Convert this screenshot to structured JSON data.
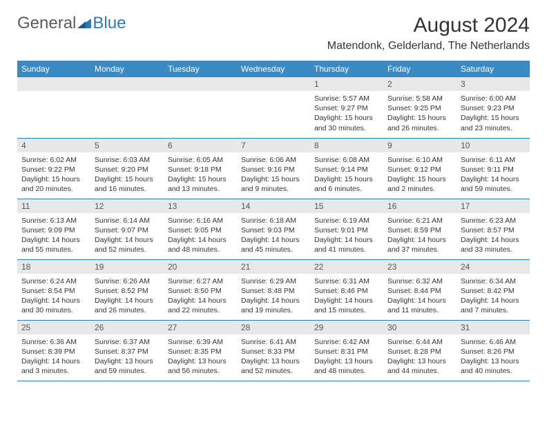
{
  "logo": {
    "general": "General",
    "blue": "Blue"
  },
  "title": "August 2024",
  "location": "Matendonk, Gelderland, The Netherlands",
  "colors": {
    "header_bg": "#3b8ac4",
    "header_text": "#ffffff",
    "border": "#2a7ab8",
    "daynum_bg": "#e8e8e8",
    "logo_gray": "#5a5a5a",
    "logo_blue": "#2a7ab8"
  },
  "dayHeaders": [
    "Sunday",
    "Monday",
    "Tuesday",
    "Wednesday",
    "Thursday",
    "Friday",
    "Saturday"
  ],
  "weeks": [
    [
      {
        "num": "",
        "sunrise": "",
        "sunset": "",
        "daylight": ""
      },
      {
        "num": "",
        "sunrise": "",
        "sunset": "",
        "daylight": ""
      },
      {
        "num": "",
        "sunrise": "",
        "sunset": "",
        "daylight": ""
      },
      {
        "num": "",
        "sunrise": "",
        "sunset": "",
        "daylight": ""
      },
      {
        "num": "1",
        "sunrise": "Sunrise: 5:57 AM",
        "sunset": "Sunset: 9:27 PM",
        "daylight": "Daylight: 15 hours and 30 minutes."
      },
      {
        "num": "2",
        "sunrise": "Sunrise: 5:58 AM",
        "sunset": "Sunset: 9:25 PM",
        "daylight": "Daylight: 15 hours and 26 minutes."
      },
      {
        "num": "3",
        "sunrise": "Sunrise: 6:00 AM",
        "sunset": "Sunset: 9:23 PM",
        "daylight": "Daylight: 15 hours and 23 minutes."
      }
    ],
    [
      {
        "num": "4",
        "sunrise": "Sunrise: 6:02 AM",
        "sunset": "Sunset: 9:22 PM",
        "daylight": "Daylight: 15 hours and 20 minutes."
      },
      {
        "num": "5",
        "sunrise": "Sunrise: 6:03 AM",
        "sunset": "Sunset: 9:20 PM",
        "daylight": "Daylight: 15 hours and 16 minutes."
      },
      {
        "num": "6",
        "sunrise": "Sunrise: 6:05 AM",
        "sunset": "Sunset: 9:18 PM",
        "daylight": "Daylight: 15 hours and 13 minutes."
      },
      {
        "num": "7",
        "sunrise": "Sunrise: 6:06 AM",
        "sunset": "Sunset: 9:16 PM",
        "daylight": "Daylight: 15 hours and 9 minutes."
      },
      {
        "num": "8",
        "sunrise": "Sunrise: 6:08 AM",
        "sunset": "Sunset: 9:14 PM",
        "daylight": "Daylight: 15 hours and 6 minutes."
      },
      {
        "num": "9",
        "sunrise": "Sunrise: 6:10 AM",
        "sunset": "Sunset: 9:12 PM",
        "daylight": "Daylight: 15 hours and 2 minutes."
      },
      {
        "num": "10",
        "sunrise": "Sunrise: 6:11 AM",
        "sunset": "Sunset: 9:11 PM",
        "daylight": "Daylight: 14 hours and 59 minutes."
      }
    ],
    [
      {
        "num": "11",
        "sunrise": "Sunrise: 6:13 AM",
        "sunset": "Sunset: 9:09 PM",
        "daylight": "Daylight: 14 hours and 55 minutes."
      },
      {
        "num": "12",
        "sunrise": "Sunrise: 6:14 AM",
        "sunset": "Sunset: 9:07 PM",
        "daylight": "Daylight: 14 hours and 52 minutes."
      },
      {
        "num": "13",
        "sunrise": "Sunrise: 6:16 AM",
        "sunset": "Sunset: 9:05 PM",
        "daylight": "Daylight: 14 hours and 48 minutes."
      },
      {
        "num": "14",
        "sunrise": "Sunrise: 6:18 AM",
        "sunset": "Sunset: 9:03 PM",
        "daylight": "Daylight: 14 hours and 45 minutes."
      },
      {
        "num": "15",
        "sunrise": "Sunrise: 6:19 AM",
        "sunset": "Sunset: 9:01 PM",
        "daylight": "Daylight: 14 hours and 41 minutes."
      },
      {
        "num": "16",
        "sunrise": "Sunrise: 6:21 AM",
        "sunset": "Sunset: 8:59 PM",
        "daylight": "Daylight: 14 hours and 37 minutes."
      },
      {
        "num": "17",
        "sunrise": "Sunrise: 6:23 AM",
        "sunset": "Sunset: 8:57 PM",
        "daylight": "Daylight: 14 hours and 33 minutes."
      }
    ],
    [
      {
        "num": "18",
        "sunrise": "Sunrise: 6:24 AM",
        "sunset": "Sunset: 8:54 PM",
        "daylight": "Daylight: 14 hours and 30 minutes."
      },
      {
        "num": "19",
        "sunrise": "Sunrise: 6:26 AM",
        "sunset": "Sunset: 8:52 PM",
        "daylight": "Daylight: 14 hours and 26 minutes."
      },
      {
        "num": "20",
        "sunrise": "Sunrise: 6:27 AM",
        "sunset": "Sunset: 8:50 PM",
        "daylight": "Daylight: 14 hours and 22 minutes."
      },
      {
        "num": "21",
        "sunrise": "Sunrise: 6:29 AM",
        "sunset": "Sunset: 8:48 PM",
        "daylight": "Daylight: 14 hours and 19 minutes."
      },
      {
        "num": "22",
        "sunrise": "Sunrise: 6:31 AM",
        "sunset": "Sunset: 8:46 PM",
        "daylight": "Daylight: 14 hours and 15 minutes."
      },
      {
        "num": "23",
        "sunrise": "Sunrise: 6:32 AM",
        "sunset": "Sunset: 8:44 PM",
        "daylight": "Daylight: 14 hours and 11 minutes."
      },
      {
        "num": "24",
        "sunrise": "Sunrise: 6:34 AM",
        "sunset": "Sunset: 8:42 PM",
        "daylight": "Daylight: 14 hours and 7 minutes."
      }
    ],
    [
      {
        "num": "25",
        "sunrise": "Sunrise: 6:36 AM",
        "sunset": "Sunset: 8:39 PM",
        "daylight": "Daylight: 14 hours and 3 minutes."
      },
      {
        "num": "26",
        "sunrise": "Sunrise: 6:37 AM",
        "sunset": "Sunset: 8:37 PM",
        "daylight": "Daylight: 13 hours and 59 minutes."
      },
      {
        "num": "27",
        "sunrise": "Sunrise: 6:39 AM",
        "sunset": "Sunset: 8:35 PM",
        "daylight": "Daylight: 13 hours and 56 minutes."
      },
      {
        "num": "28",
        "sunrise": "Sunrise: 6:41 AM",
        "sunset": "Sunset: 8:33 PM",
        "daylight": "Daylight: 13 hours and 52 minutes."
      },
      {
        "num": "29",
        "sunrise": "Sunrise: 6:42 AM",
        "sunset": "Sunset: 8:31 PM",
        "daylight": "Daylight: 13 hours and 48 minutes."
      },
      {
        "num": "30",
        "sunrise": "Sunrise: 6:44 AM",
        "sunset": "Sunset: 8:28 PM",
        "daylight": "Daylight: 13 hours and 44 minutes."
      },
      {
        "num": "31",
        "sunrise": "Sunrise: 6:46 AM",
        "sunset": "Sunset: 8:26 PM",
        "daylight": "Daylight: 13 hours and 40 minutes."
      }
    ]
  ]
}
